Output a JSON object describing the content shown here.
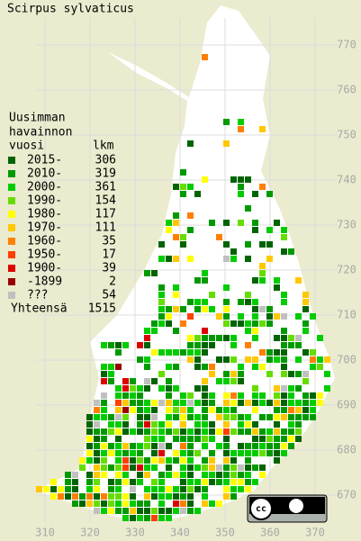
{
  "title": "Scirpus sylvaticus",
  "legend": {
    "heading": [
      "Uusimman",
      "havainnon"
    ],
    "col_year": "vuosi",
    "col_count": "lkm",
    "rows": [
      {
        "label": "2015-",
        "count": 306,
        "color": "#006400"
      },
      {
        "label": "2010-",
        "count": 319,
        "color": "#009a00"
      },
      {
        "label": "2000-",
        "count": 361,
        "color": "#00cc00"
      },
      {
        "label": "1990-",
        "count": 154,
        "color": "#66dd00"
      },
      {
        "label": "1980-",
        "count": 117,
        "color": "#ffff00"
      },
      {
        "label": "1970-",
        "count": 111,
        "color": "#ffc800"
      },
      {
        "label": "1960-",
        "count": 35,
        "color": "#ff8000"
      },
      {
        "label": "1950-",
        "count": 17,
        "color": "#ff4000"
      },
      {
        "label": "1900-",
        "count": 39,
        "color": "#dd0000"
      },
      {
        "label": "-1899",
        "count": 2,
        "color": "#990000"
      },
      {
        "label": "???",
        "count": 54,
        "color": "#c0c0c0"
      }
    ],
    "total_label": "Yhteensä",
    "total": 1515
  },
  "grid": {
    "x_labels": [
      310,
      320,
      330,
      340,
      350,
      360,
      370
    ],
    "y_labels": [
      670,
      680,
      690,
      700,
      710,
      720,
      730,
      740,
      750,
      760,
      770
    ]
  },
  "license": "cc BY"
}
